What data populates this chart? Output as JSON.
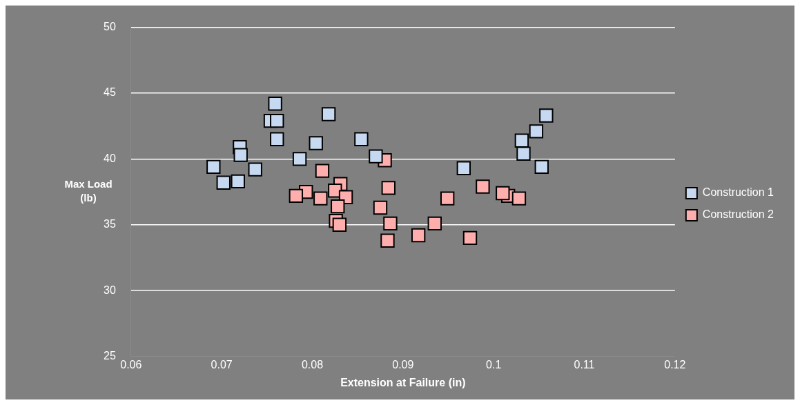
{
  "chart_data": {
    "type": "scatter",
    "xlabel": "Extension at Failure (in)",
    "ylabel": "Max Load (lb)",
    "xlim": [
      0.06,
      0.12
    ],
    "xticks": [
      0.06,
      0.07,
      0.08,
      0.09,
      0.1,
      0.11,
      0.12
    ],
    "ylim": [
      25,
      50
    ],
    "yticks": [
      25,
      30,
      35,
      40,
      45,
      50
    ],
    "grid": "y",
    "legend": "right",
    "marker": "square",
    "series": [
      {
        "name": "Construction 1",
        "color": "#c6d9f1",
        "x": [
          0.0759,
          0.0754,
          0.0761,
          0.0761,
          0.0818,
          0.0804,
          0.0786,
          0.0854,
          0.087,
          0.072,
          0.0721,
          0.0691,
          0.0702,
          0.0718,
          0.0737,
          0.0967,
          0.1058,
          0.1047,
          0.1031,
          0.1033,
          0.1053
        ],
        "values": [
          44.2,
          42.9,
          42.9,
          41.5,
          43.4,
          41.2,
          40,
          41.5,
          40.2,
          40.9,
          40.3,
          39.4,
          38.2,
          38.3,
          39.2,
          39.3,
          43.3,
          42.1,
          41.4,
          40.4,
          39.4
        ]
      },
      {
        "name": "Construction 2",
        "color": "#ffaeae",
        "x": [
          0.088,
          0.0811,
          0.0831,
          0.0793,
          0.0782,
          0.0809,
          0.0825,
          0.0837,
          0.0828,
          0.0826,
          0.083,
          0.0884,
          0.0875,
          0.0886,
          0.0883,
          0.0917,
          0.0935,
          0.0949,
          0.0974,
          0.0988,
          0.1016,
          0.1028,
          0.101
        ],
        "values": [
          39.9,
          39.1,
          38.1,
          37.5,
          37.2,
          37,
          37.6,
          37.1,
          36.4,
          35.3,
          35,
          37.8,
          36.3,
          35.1,
          33.8,
          34.2,
          35.1,
          37,
          34,
          37.9,
          37.2,
          37,
          37.4
        ]
      }
    ]
  }
}
